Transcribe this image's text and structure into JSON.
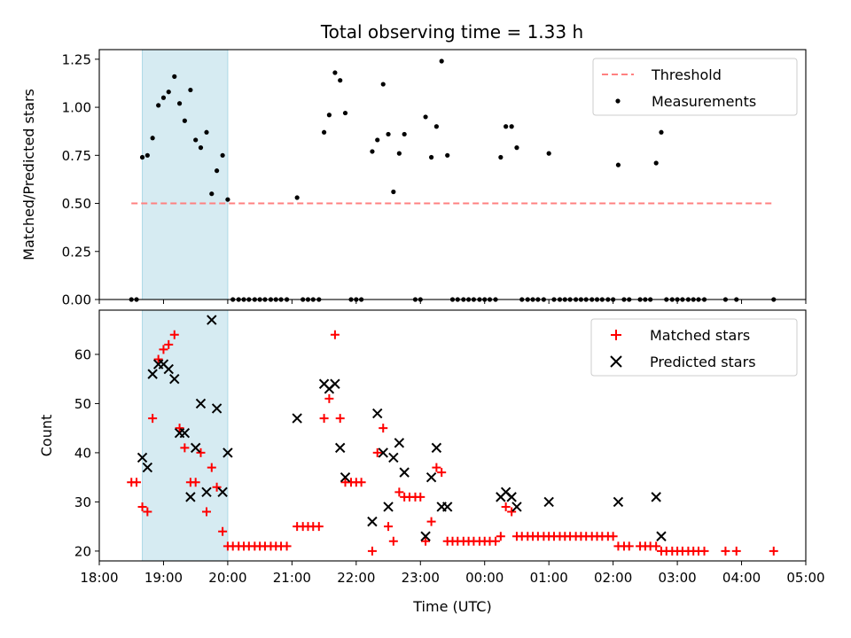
{
  "figure_title": "Total observing time = 1.33 h",
  "chart_data": [
    {
      "type": "scatter",
      "panel": "top",
      "ylabel": "Matched/Predicted stars",
      "xlabel": "",
      "x_unit": "hours after 18:00 UTC",
      "xlim": [
        0,
        11
      ],
      "ylim": [
        0,
        1.3
      ],
      "yticks": [
        0.0,
        0.25,
        0.5,
        0.75,
        1.0,
        1.25
      ],
      "ytick_labels": [
        "0.00",
        "0.25",
        "0.50",
        "0.75",
        "1.00",
        "1.25"
      ],
      "shaded_span": [
        0.67,
        2.0
      ],
      "threshold": {
        "name": "Threshold",
        "y": 0.5,
        "x": [
          0.5,
          10.5
        ],
        "color": "#ff8080"
      },
      "legend": {
        "placement": "top-right",
        "entries": [
          "Threshold",
          "Measurements"
        ]
      },
      "series": [
        {
          "name": "Measurements",
          "color": "#000000",
          "points": [
            [
              0.5,
              0
            ],
            [
              0.58,
              0
            ],
            [
              0.67,
              0.74
            ],
            [
              0.75,
              0.75
            ],
            [
              0.83,
              0.84
            ],
            [
              0.92,
              1.01
            ],
            [
              1.0,
              1.05
            ],
            [
              1.08,
              1.08
            ],
            [
              1.17,
              1.16
            ],
            [
              1.25,
              1.02
            ],
            [
              1.33,
              0.93
            ],
            [
              1.42,
              1.09
            ],
            [
              1.5,
              0.83
            ],
            [
              1.58,
              0.79
            ],
            [
              1.67,
              0.87
            ],
            [
              1.75,
              0.55
            ],
            [
              1.83,
              0.67
            ],
            [
              1.92,
              0.75
            ],
            [
              2.0,
              0.52
            ],
            [
              2.08,
              0
            ],
            [
              2.17,
              0
            ],
            [
              2.25,
              0
            ],
            [
              2.33,
              0
            ],
            [
              2.42,
              0
            ],
            [
              2.5,
              0
            ],
            [
              2.58,
              0
            ],
            [
              2.67,
              0
            ],
            [
              2.75,
              0
            ],
            [
              2.83,
              0
            ],
            [
              2.92,
              0
            ],
            [
              3.08,
              0.53
            ],
            [
              3.17,
              0
            ],
            [
              3.25,
              0
            ],
            [
              3.33,
              0
            ],
            [
              3.42,
              0
            ],
            [
              3.5,
              0.87
            ],
            [
              3.58,
              0.96
            ],
            [
              3.67,
              1.18
            ],
            [
              3.75,
              1.14
            ],
            [
              3.83,
              0.97
            ],
            [
              3.92,
              0
            ],
            [
              4.0,
              0
            ],
            [
              4.08,
              0
            ],
            [
              4.25,
              0.77
            ],
            [
              4.33,
              0.83
            ],
            [
              4.42,
              1.12
            ],
            [
              4.5,
              0.86
            ],
            [
              4.58,
              0.56
            ],
            [
              4.67,
              0.76
            ],
            [
              4.75,
              0.86
            ],
            [
              4.92,
              0
            ],
            [
              5.0,
              0
            ],
            [
              5.08,
              0.95
            ],
            [
              5.17,
              0.74
            ],
            [
              5.25,
              0.9
            ],
            [
              5.33,
              1.24
            ],
            [
              5.42,
              0.75
            ],
            [
              5.5,
              0
            ],
            [
              5.58,
              0
            ],
            [
              5.67,
              0
            ],
            [
              5.75,
              0
            ],
            [
              5.83,
              0
            ],
            [
              5.92,
              0
            ],
            [
              6.0,
              0
            ],
            [
              6.08,
              0
            ],
            [
              6.17,
              0
            ],
            [
              6.25,
              0.74
            ],
            [
              6.33,
              0.9
            ],
            [
              6.42,
              0.9
            ],
            [
              6.5,
              0.79
            ],
            [
              6.58,
              0
            ],
            [
              6.67,
              0
            ],
            [
              6.75,
              0
            ],
            [
              6.83,
              0
            ],
            [
              6.92,
              0
            ],
            [
              7.0,
              0.76
            ],
            [
              7.08,
              0
            ],
            [
              7.17,
              0
            ],
            [
              7.25,
              0
            ],
            [
              7.33,
              0
            ],
            [
              7.42,
              0
            ],
            [
              7.5,
              0
            ],
            [
              7.58,
              0
            ],
            [
              7.67,
              0
            ],
            [
              7.75,
              0
            ],
            [
              7.83,
              0
            ],
            [
              7.92,
              0
            ],
            [
              8.0,
              0
            ],
            [
              8.08,
              0.7
            ],
            [
              8.17,
              0
            ],
            [
              8.25,
              0
            ],
            [
              8.42,
              0
            ],
            [
              8.5,
              0
            ],
            [
              8.58,
              0
            ],
            [
              8.67,
              0.71
            ],
            [
              8.75,
              0.87
            ],
            [
              8.83,
              0
            ],
            [
              8.92,
              0
            ],
            [
              9.0,
              0
            ],
            [
              9.08,
              0
            ],
            [
              9.17,
              0
            ],
            [
              9.25,
              0
            ],
            [
              9.33,
              0
            ],
            [
              9.42,
              0
            ],
            [
              9.75,
              0
            ],
            [
              9.92,
              0
            ],
            [
              10.5,
              0
            ]
          ]
        }
      ]
    },
    {
      "type": "scatter",
      "panel": "bottom",
      "ylabel": "Count",
      "xlabel": "Time (UTC)",
      "x_unit": "hours after 18:00 UTC",
      "xlim": [
        0,
        11
      ],
      "ylim": [
        18,
        69
      ],
      "yticks": [
        20,
        30,
        40,
        50,
        60
      ],
      "ytick_labels": [
        "20",
        "30",
        "40",
        "50",
        "60"
      ],
      "xticks": [
        0,
        1,
        2,
        3,
        4,
        5,
        6,
        7,
        8,
        9,
        10,
        11
      ],
      "xtick_labels": [
        "18:00",
        "19:00",
        "20:00",
        "21:00",
        "22:00",
        "23:00",
        "00:00",
        "01:00",
        "02:00",
        "03:00",
        "04:00",
        "05:00"
      ],
      "shaded_span": [
        0.67,
        2.0
      ],
      "legend": {
        "placement": "top-right",
        "entries": [
          "Matched stars",
          "Predicted stars"
        ]
      },
      "series": [
        {
          "name": "Matched stars",
          "marker": "plus",
          "color": "#ff0000",
          "points": [
            [
              0.5,
              34
            ],
            [
              0.58,
              34
            ],
            [
              0.67,
              29
            ],
            [
              0.75,
              28
            ],
            [
              0.83,
              47
            ],
            [
              0.92,
              59
            ],
            [
              1.0,
              61
            ],
            [
              1.08,
              62
            ],
            [
              1.17,
              64
            ],
            [
              1.25,
              45
            ],
            [
              1.33,
              41
            ],
            [
              1.42,
              34
            ],
            [
              1.5,
              34
            ],
            [
              1.58,
              40
            ],
            [
              1.67,
              28
            ],
            [
              1.75,
              37
            ],
            [
              1.83,
              33
            ],
            [
              1.92,
              24
            ],
            [
              2.0,
              21
            ],
            [
              2.08,
              21
            ],
            [
              2.17,
              21
            ],
            [
              2.25,
              21
            ],
            [
              2.33,
              21
            ],
            [
              2.42,
              21
            ],
            [
              2.5,
              21
            ],
            [
              2.58,
              21
            ],
            [
              2.67,
              21
            ],
            [
              2.75,
              21
            ],
            [
              2.83,
              21
            ],
            [
              2.92,
              21
            ],
            [
              3.08,
              25
            ],
            [
              3.17,
              25
            ],
            [
              3.25,
              25
            ],
            [
              3.33,
              25
            ],
            [
              3.42,
              25
            ],
            [
              3.5,
              47
            ],
            [
              3.58,
              51
            ],
            [
              3.67,
              64
            ],
            [
              3.75,
              47
            ],
            [
              3.83,
              34
            ],
            [
              3.92,
              34
            ],
            [
              4.0,
              34
            ],
            [
              4.08,
              34
            ],
            [
              4.25,
              20
            ],
            [
              4.33,
              40
            ],
            [
              4.42,
              45
            ],
            [
              4.5,
              25
            ],
            [
              4.58,
              22
            ],
            [
              4.67,
              32
            ],
            [
              4.75,
              31
            ],
            [
              4.83,
              31
            ],
            [
              4.92,
              31
            ],
            [
              5.0,
              31
            ],
            [
              5.08,
              22
            ],
            [
              5.17,
              26
            ],
            [
              5.25,
              37
            ],
            [
              5.33,
              36
            ],
            [
              5.42,
              22
            ],
            [
              5.5,
              22
            ],
            [
              5.58,
              22
            ],
            [
              5.67,
              22
            ],
            [
              5.75,
              22
            ],
            [
              5.83,
              22
            ],
            [
              5.92,
              22
            ],
            [
              6.0,
              22
            ],
            [
              6.08,
              22
            ],
            [
              6.17,
              22
            ],
            [
              6.25,
              23
            ],
            [
              6.33,
              29
            ],
            [
              6.42,
              28
            ],
            [
              6.5,
              23
            ],
            [
              6.58,
              23
            ],
            [
              6.67,
              23
            ],
            [
              6.75,
              23
            ],
            [
              6.83,
              23
            ],
            [
              6.92,
              23
            ],
            [
              7.0,
              23
            ],
            [
              7.08,
              23
            ],
            [
              7.17,
              23
            ],
            [
              7.25,
              23
            ],
            [
              7.33,
              23
            ],
            [
              7.42,
              23
            ],
            [
              7.5,
              23
            ],
            [
              7.58,
              23
            ],
            [
              7.67,
              23
            ],
            [
              7.75,
              23
            ],
            [
              7.83,
              23
            ],
            [
              7.92,
              23
            ],
            [
              8.0,
              23
            ],
            [
              8.08,
              21
            ],
            [
              8.17,
              21
            ],
            [
              8.25,
              21
            ],
            [
              8.42,
              21
            ],
            [
              8.5,
              21
            ],
            [
              8.58,
              21
            ],
            [
              8.67,
              21
            ],
            [
              8.75,
              20
            ],
            [
              8.83,
              20
            ],
            [
              8.92,
              20
            ],
            [
              9.0,
              20
            ],
            [
              9.08,
              20
            ],
            [
              9.17,
              20
            ],
            [
              9.25,
              20
            ],
            [
              9.33,
              20
            ],
            [
              9.42,
              20
            ],
            [
              9.75,
              20
            ],
            [
              9.92,
              20
            ],
            [
              10.5,
              20
            ]
          ]
        },
        {
          "name": "Predicted stars",
          "marker": "x",
          "color": "#000000",
          "points": [
            [
              0.67,
              39
            ],
            [
              0.75,
              37
            ],
            [
              0.83,
              56
            ],
            [
              0.92,
              58
            ],
            [
              1.0,
              58
            ],
            [
              1.08,
              57
            ],
            [
              1.17,
              55
            ],
            [
              1.25,
              44
            ],
            [
              1.33,
              44
            ],
            [
              1.42,
              31
            ],
            [
              1.5,
              41
            ],
            [
              1.58,
              50
            ],
            [
              1.67,
              32
            ],
            [
              1.75,
              67
            ],
            [
              1.83,
              49
            ],
            [
              1.92,
              32
            ],
            [
              2.0,
              40
            ],
            [
              3.08,
              47
            ],
            [
              3.5,
              54
            ],
            [
              3.58,
              53
            ],
            [
              3.67,
              54
            ],
            [
              3.75,
              41
            ],
            [
              3.83,
              35
            ],
            [
              4.25,
              26
            ],
            [
              4.33,
              48
            ],
            [
              4.42,
              40
            ],
            [
              4.5,
              29
            ],
            [
              4.58,
              39
            ],
            [
              4.67,
              42
            ],
            [
              4.75,
              36
            ],
            [
              5.08,
              23
            ],
            [
              5.17,
              35
            ],
            [
              5.25,
              41
            ],
            [
              5.33,
              29
            ],
            [
              5.42,
              29
            ],
            [
              6.25,
              31
            ],
            [
              6.33,
              32
            ],
            [
              6.42,
              31
            ],
            [
              6.5,
              29
            ],
            [
              7.0,
              30
            ],
            [
              8.08,
              30
            ],
            [
              8.67,
              31
            ],
            [
              8.75,
              23
            ]
          ]
        }
      ]
    }
  ]
}
